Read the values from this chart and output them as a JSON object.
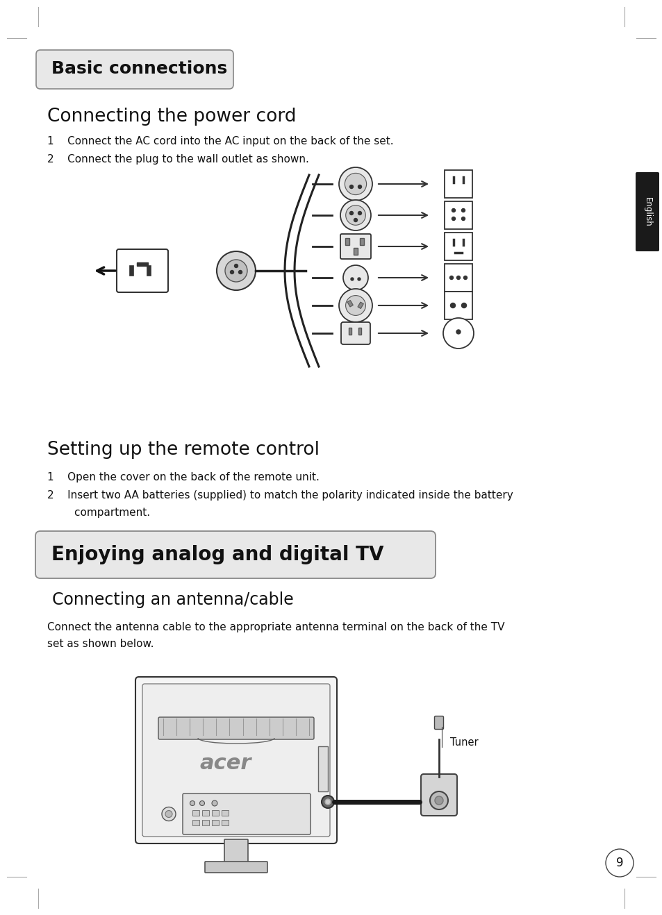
{
  "bg_color": "#ffffff",
  "page_number": "9",
  "section1_title": "Basic connections",
  "section2_title": "Enjoying analog and digital TV",
  "sub1_title": "Connecting the power cord",
  "sub2_title": "Setting up the remote control",
  "sub3_title": "Connecting an antenna/cable",
  "power_item1": "1    Connect the AC cord into the AC input on the back of the set.",
  "power_item2": "2    Connect the plug to the wall outlet as shown.",
  "remote_item1": "1    Open the cover on the back of the remote unit.",
  "remote_item2a": "2    Insert two AA batteries (supplied) to match the polarity indicated inside the battery",
  "remote_item2b": "        compartment.",
  "antenna_text1": "Connect the antenna cable to the appropriate antenna terminal on the back of the TV",
  "antenna_text2": "set as shown below.",
  "tuner_label": "Tuner",
  "side_tab_text": "English",
  "tick_color": "#aaaaaa",
  "outline_color": "#333333",
  "light_gray": "#e0e0e0",
  "dark_gray": "#555555"
}
